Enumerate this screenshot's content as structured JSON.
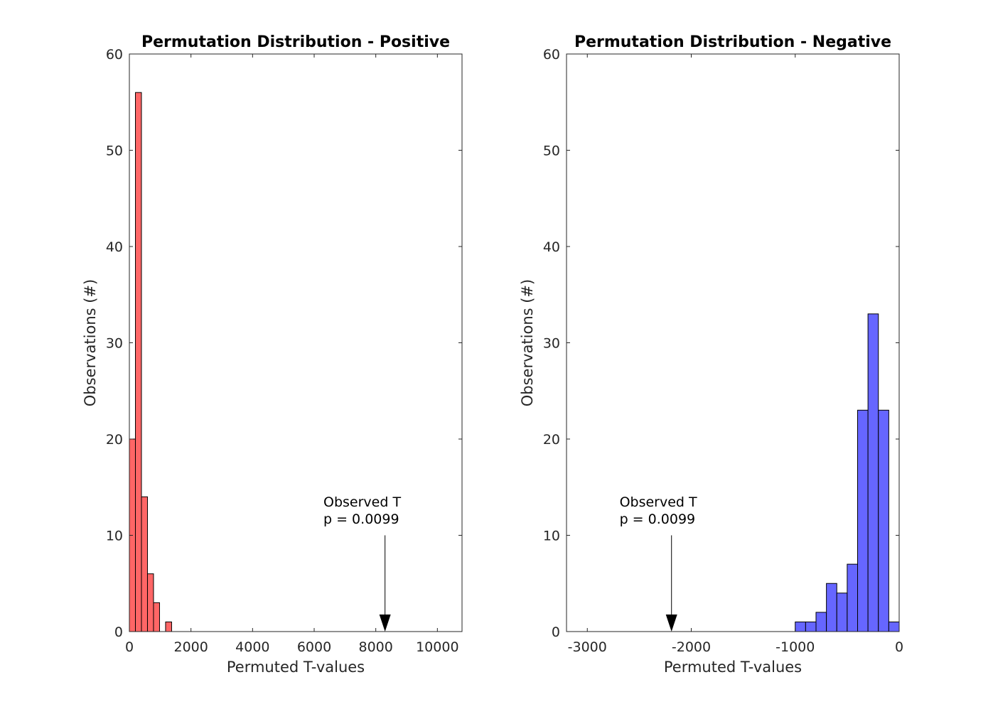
{
  "chart_data": [
    {
      "type": "bar",
      "title": "Permutation Distribution - Positive",
      "xlabel": "Permuted T-values",
      "ylabel": "Observations (#)",
      "xlim": [
        0,
        10800
      ],
      "ylim": [
        0,
        60
      ],
      "xticks": [
        0,
        2000,
        4000,
        6000,
        8000,
        10000
      ],
      "xtick_labels": [
        "0",
        "2000",
        "4000",
        "6000",
        "8000",
        "10000"
      ],
      "yticks": [
        0,
        10,
        20,
        30,
        40,
        50,
        60
      ],
      "ytick_labels": [
        "0",
        "10",
        "20",
        "30",
        "40",
        "50",
        "60"
      ],
      "bar_color": "#ff6666",
      "bins": [
        {
          "x0": 0,
          "x1": 196,
          "value": 20
        },
        {
          "x0": 196,
          "x1": 392,
          "value": 56
        },
        {
          "x0": 392,
          "x1": 588,
          "value": 14
        },
        {
          "x0": 588,
          "x1": 784,
          "value": 6
        },
        {
          "x0": 784,
          "x1": 980,
          "value": 3
        },
        {
          "x0": 980,
          "x1": 1176,
          "value": 0
        },
        {
          "x0": 1176,
          "x1": 1372,
          "value": 1
        }
      ],
      "annotation": {
        "line1": "Observed T",
        "line2": "p = 0.0099",
        "x": 8300,
        "y_top": 10,
        "text_x": 6300,
        "text_y": 11.2
      }
    },
    {
      "type": "bar",
      "title": "Permutation Distribution - Negative",
      "xlabel": "Permuted T-values",
      "ylabel": "Observations (#)",
      "xlim": [
        -3200,
        0
      ],
      "ylim": [
        0,
        60
      ],
      "xticks": [
        -3000,
        -2000,
        -1000,
        0
      ],
      "xtick_labels": [
        "-3000",
        "-2000",
        "-1000",
        "0"
      ],
      "yticks": [
        0,
        10,
        20,
        30,
        40,
        50,
        60
      ],
      "ytick_labels": [
        "0",
        "10",
        "20",
        "30",
        "40",
        "50",
        "60"
      ],
      "bar_color": "#6666ff",
      "bins": [
        {
          "x0": -1000,
          "x1": -900,
          "value": 1
        },
        {
          "x0": -900,
          "x1": -800,
          "value": 1
        },
        {
          "x0": -800,
          "x1": -700,
          "value": 2
        },
        {
          "x0": -700,
          "x1": -600,
          "value": 5
        },
        {
          "x0": -600,
          "x1": -500,
          "value": 4
        },
        {
          "x0": -500,
          "x1": -400,
          "value": 7
        },
        {
          "x0": -400,
          "x1": -300,
          "value": 23
        },
        {
          "x0": -300,
          "x1": -200,
          "value": 33
        },
        {
          "x0": -200,
          "x1": -100,
          "value": 23
        },
        {
          "x0": -100,
          "x1": 0,
          "value": 1
        }
      ],
      "annotation": {
        "line1": "Observed T",
        "line2": "p = 0.0099",
        "x": -2190,
        "y_top": 10,
        "text_x": -2690,
        "text_y": 11.2
      }
    }
  ]
}
